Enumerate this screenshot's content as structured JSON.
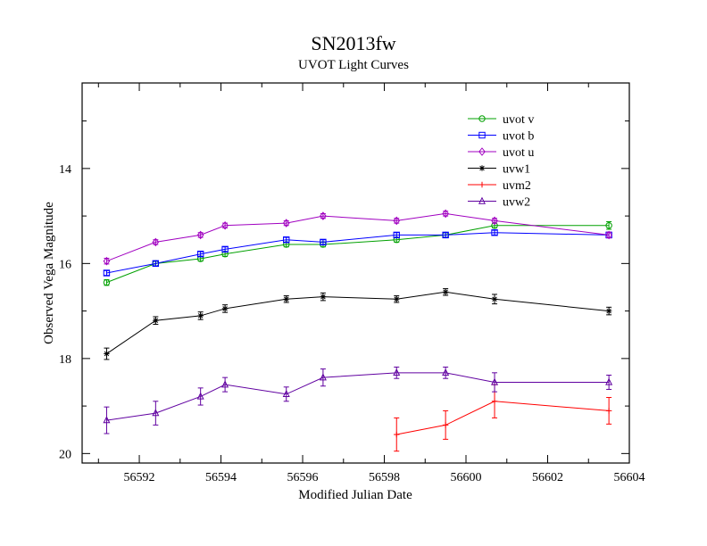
{
  "chart_data": {
    "type": "line",
    "title": "SN2013fw",
    "subtitle": "UVOT Light Curves",
    "xlabel": "Modified Julian Date",
    "ylabel": "Observed Vega Magnitude",
    "xlim": [
      56590.6,
      56604.0
    ],
    "ylim": [
      20.2,
      12.2
    ],
    "y_inverted": true,
    "grid": false,
    "legend_position": "top-right",
    "x_ticks": [
      56592,
      56594,
      56596,
      56598,
      56600,
      56602,
      56604
    ],
    "y_ticks": [
      14,
      16,
      18,
      20
    ],
    "series": [
      {
        "name": "uvot v",
        "color": "#00a000",
        "marker": "circle",
        "x": [
          56591.2,
          56592.4,
          56593.5,
          56594.1,
          56595.6,
          56596.5,
          56598.3,
          56599.5,
          56600.7,
          56603.5
        ],
        "y": [
          16.4,
          16.0,
          15.9,
          15.8,
          15.6,
          15.6,
          15.5,
          15.4,
          15.2,
          15.2
        ],
        "err": [
          0.06,
          0.05,
          0.05,
          0.05,
          0.05,
          0.05,
          0.05,
          0.05,
          0.05,
          0.08
        ]
      },
      {
        "name": "uvot b",
        "color": "#0000ff",
        "marker": "square",
        "x": [
          56591.2,
          56592.4,
          56593.5,
          56594.1,
          56595.6,
          56596.5,
          56598.3,
          56599.5,
          56600.7,
          56603.5
        ],
        "y": [
          16.2,
          16.0,
          15.8,
          15.7,
          15.5,
          15.55,
          15.4,
          15.4,
          15.35,
          15.4
        ],
        "err": [
          0.05,
          0.05,
          0.05,
          0.05,
          0.05,
          0.05,
          0.05,
          0.05,
          0.05,
          0.06
        ]
      },
      {
        "name": "uvot u",
        "color": "#a000c0",
        "marker": "diamond",
        "x": [
          56591.2,
          56592.4,
          56593.5,
          56594.1,
          56595.6,
          56596.5,
          56598.3,
          56599.5,
          56600.7,
          56603.5
        ],
        "y": [
          15.95,
          15.55,
          15.4,
          15.2,
          15.15,
          15.0,
          15.1,
          14.95,
          15.1,
          15.4
        ],
        "err": [
          0.06,
          0.05,
          0.05,
          0.05,
          0.05,
          0.05,
          0.05,
          0.05,
          0.05,
          0.06
        ]
      },
      {
        "name": "uvw1",
        "color": "#000000",
        "marker": "star",
        "x": [
          56591.2,
          56592.4,
          56593.5,
          56594.1,
          56595.6,
          56596.5,
          56598.3,
          56599.5,
          56600.7,
          56603.5
        ],
        "y": [
          17.9,
          17.2,
          17.1,
          16.95,
          16.75,
          16.7,
          16.75,
          16.6,
          16.75,
          17.0
        ],
        "err": [
          0.12,
          0.08,
          0.08,
          0.08,
          0.07,
          0.08,
          0.07,
          0.07,
          0.1,
          0.08
        ]
      },
      {
        "name": "uvm2",
        "color": "#ff0000",
        "marker": "plus",
        "x": [
          56598.3,
          56599.5,
          56600.7,
          56603.5
        ],
        "y": [
          19.6,
          19.4,
          18.9,
          19.1
        ],
        "err": [
          0.35,
          0.3,
          0.35,
          0.28
        ]
      },
      {
        "name": "uvw2",
        "color": "#6000a0",
        "marker": "triangle",
        "x": [
          56591.2,
          56592.4,
          56593.5,
          56594.1,
          56595.6,
          56596.5,
          56598.3,
          56599.5,
          56600.7,
          56603.5
        ],
        "y": [
          19.3,
          19.15,
          18.8,
          18.55,
          18.75,
          18.4,
          18.3,
          18.3,
          18.5,
          18.5
        ],
        "err": [
          0.28,
          0.25,
          0.18,
          0.15,
          0.15,
          0.18,
          0.12,
          0.12,
          0.2,
          0.15
        ]
      }
    ]
  }
}
